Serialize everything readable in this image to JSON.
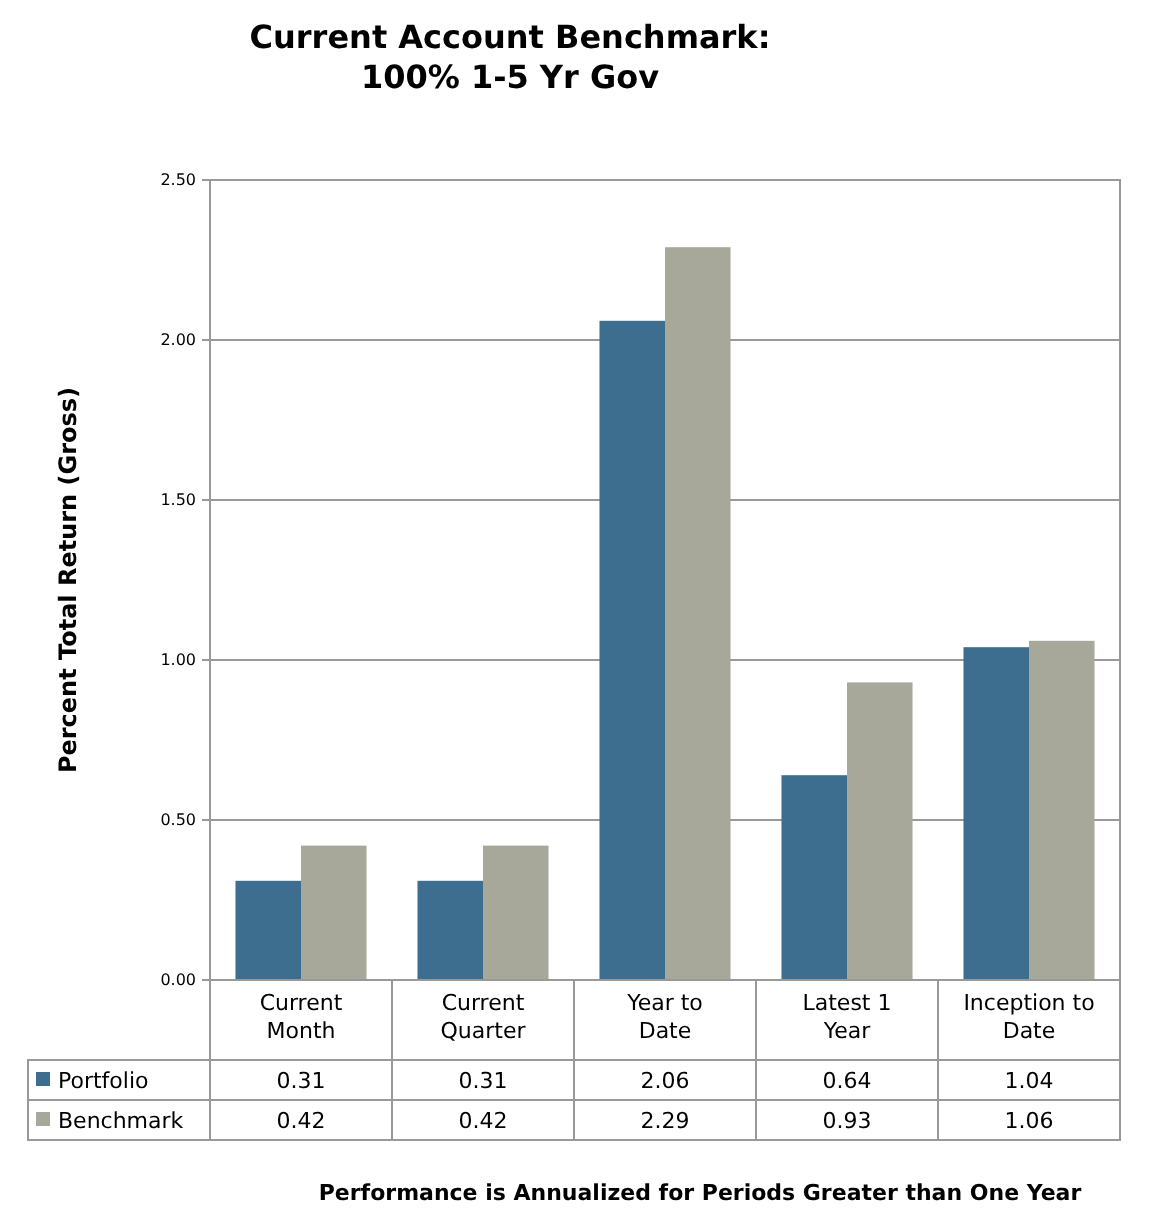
{
  "chart_data": {
    "type": "bar",
    "title": "Current Account Benchmark:\n100% 1-5 Yr Gov",
    "ylabel": "Percent Total Return (Gross)",
    "categories": [
      "Current Month",
      "Current Quarter",
      "Year to Date",
      "Latest 1 Year",
      "Inception to Date"
    ],
    "series": [
      {
        "name": "Portfolio",
        "color": "#3d6d8f",
        "values": [
          0.31,
          0.31,
          2.06,
          0.64,
          1.04
        ]
      },
      {
        "name": "Benchmark",
        "color": "#a8a89a",
        "values": [
          0.42,
          0.42,
          2.29,
          0.93,
          1.06
        ]
      }
    ],
    "ylim": [
      0,
      2.5
    ],
    "yticks": [
      {
        "value": 0,
        "label": "0.00"
      },
      {
        "value": 0.5,
        "label": "0.50"
      },
      {
        "value": 1,
        "label": "1.00"
      },
      {
        "value": 1.5,
        "label": "1.50"
      },
      {
        "value": 2,
        "label": "2.00"
      },
      {
        "value": 2.5,
        "label": "2.50"
      }
    ],
    "grid": "y",
    "legend": "bottom left",
    "data_labels": true,
    "annotations": [
      "Performance is Annualized for Periods Greater than One Year"
    ]
  }
}
